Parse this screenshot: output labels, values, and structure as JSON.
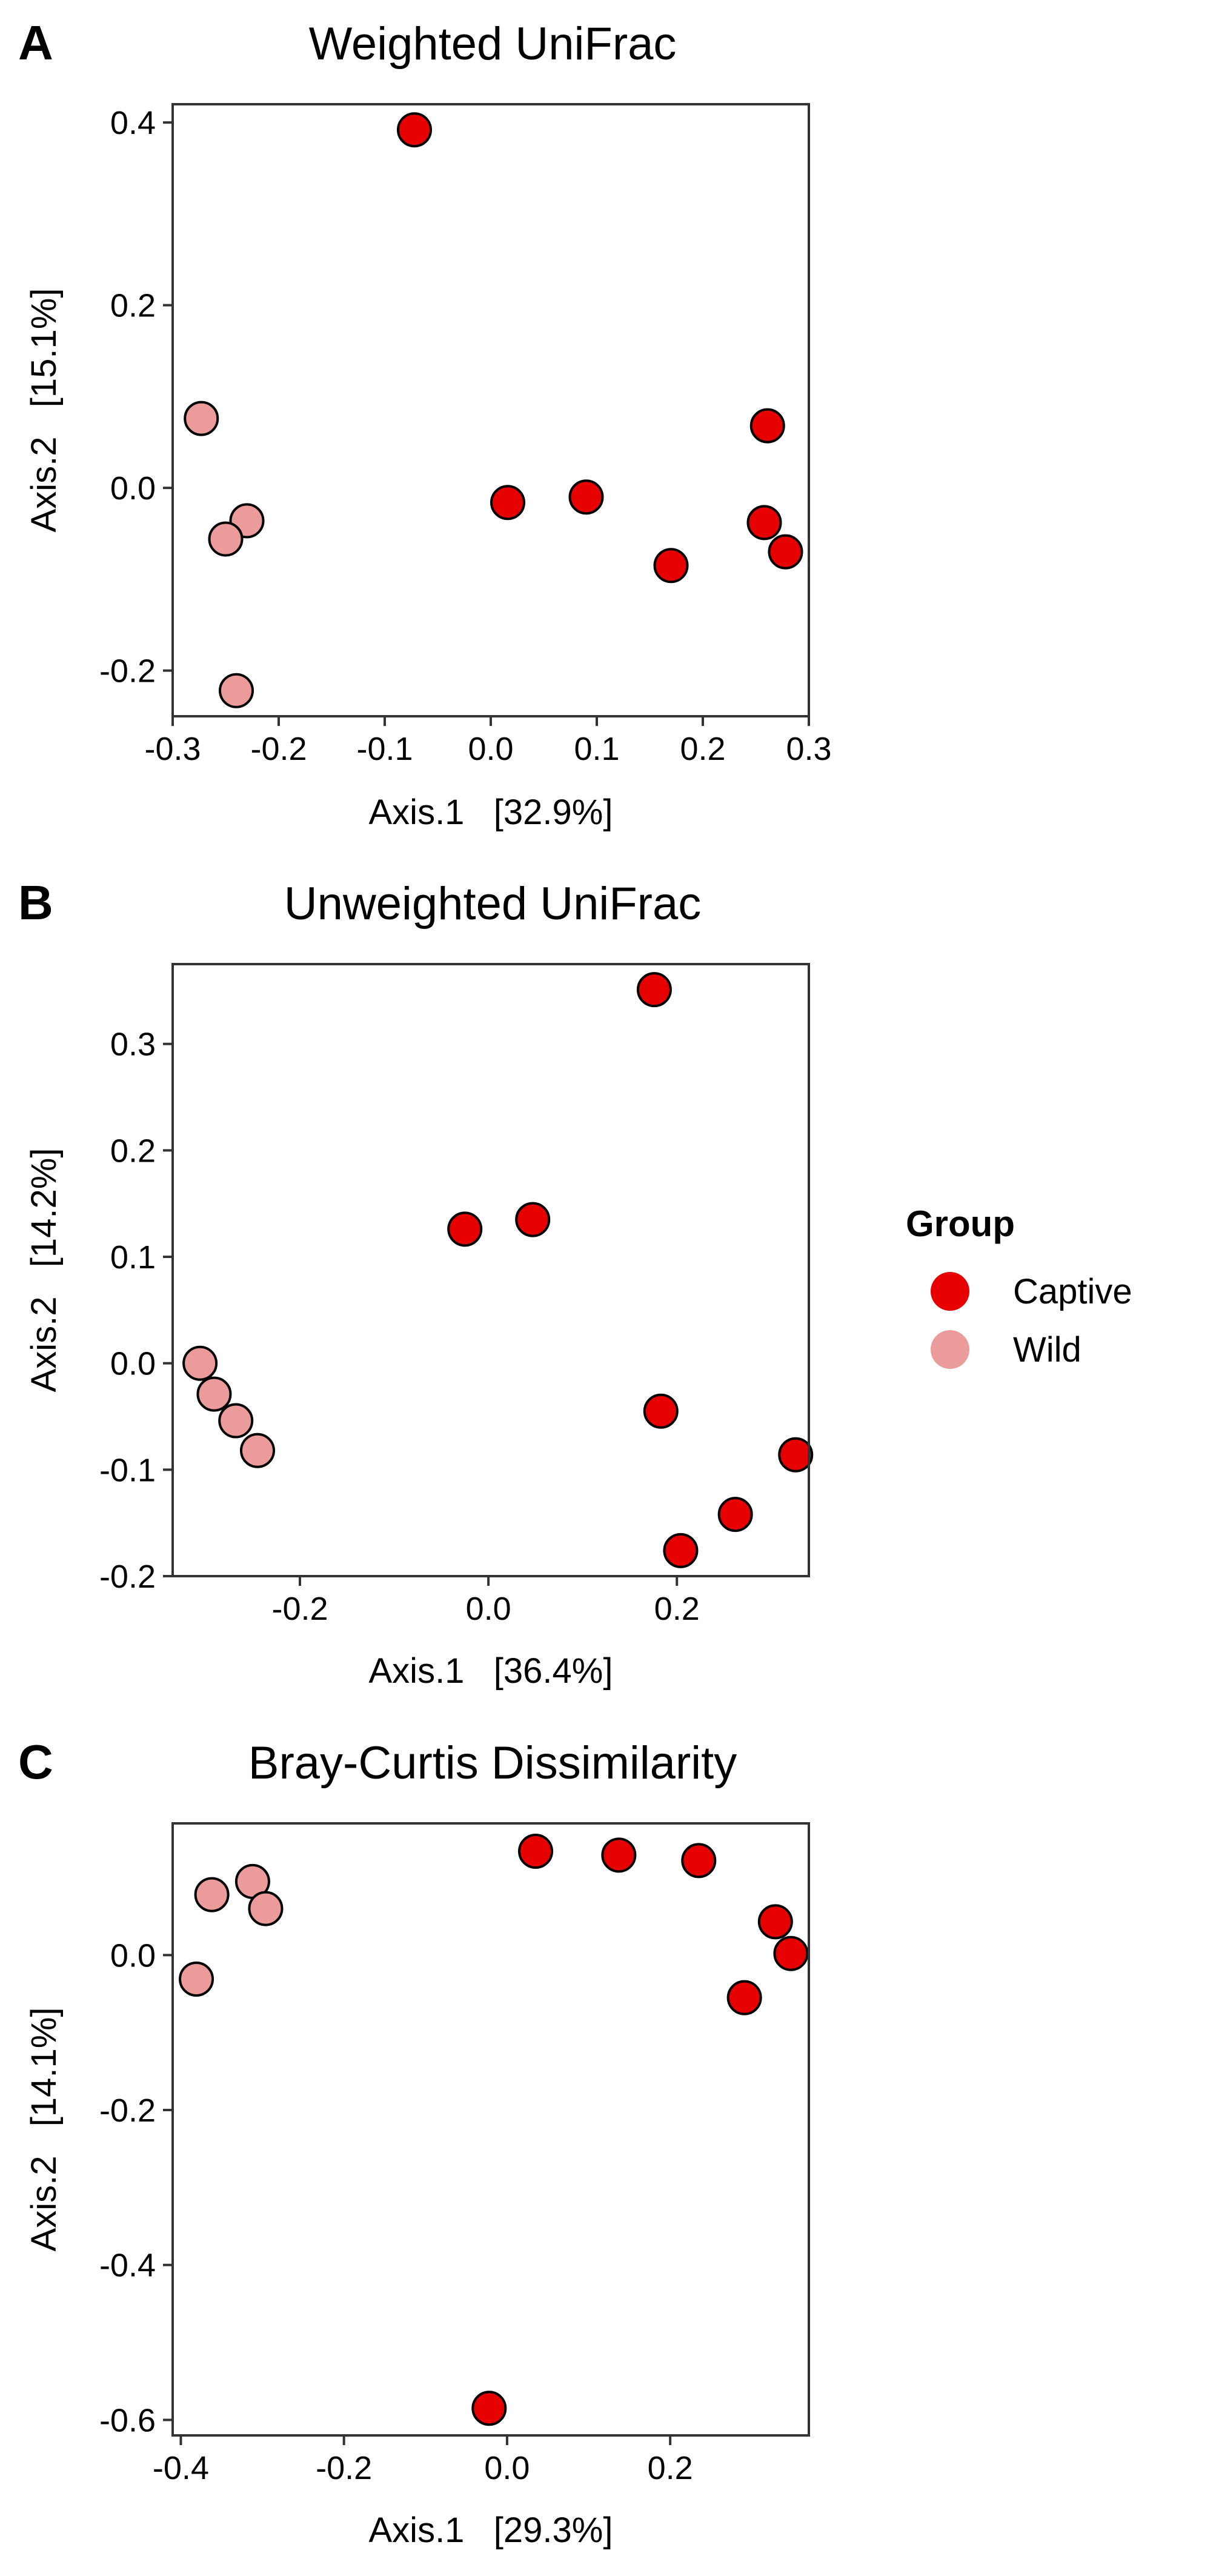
{
  "legend": {
    "title": "Group",
    "placement": "right",
    "entries": [
      {
        "label": "Captive",
        "color": "#E60000"
      },
      {
        "label": "Wild",
        "color": "#EC9B9B"
      }
    ]
  },
  "chart_data": [
    {
      "panel_letter": "A",
      "type": "scatter",
      "title": "Weighted UniFrac",
      "xlabel": "Axis.1   [32.9%]",
      "ylabel": "Axis.2   [15.1%]",
      "xlim": [
        -0.3,
        0.3
      ],
      "ylim": [
        -0.25,
        0.42
      ],
      "xticks": [
        -0.3,
        -0.2,
        -0.1,
        0.0,
        0.1,
        0.2,
        0.3
      ],
      "xtick_labels": [
        "-0.3",
        "-0.2",
        "-0.1",
        "0.0",
        "0.1",
        "0.2",
        "0.3"
      ],
      "yticks": [
        -0.2,
        0.0,
        0.2,
        0.4
      ],
      "ytick_labels": [
        "-0.2",
        "0.0",
        "0.2",
        "0.4"
      ],
      "grid": false,
      "series": [
        {
          "name": "Captive",
          "color": "#E60000",
          "points": [
            {
              "x": -0.072,
              "y": 0.392
            },
            {
              "x": 0.016,
              "y": -0.016
            },
            {
              "x": 0.09,
              "y": -0.01
            },
            {
              "x": 0.17,
              "y": -0.085
            },
            {
              "x": 0.261,
              "y": 0.068
            },
            {
              "x": 0.258,
              "y": -0.038
            },
            {
              "x": 0.278,
              "y": -0.07
            }
          ]
        },
        {
          "name": "Wild",
          "color": "#EC9B9B",
          "points": [
            {
              "x": -0.273,
              "y": 0.076
            },
            {
              "x": -0.23,
              "y": -0.036
            },
            {
              "x": -0.25,
              "y": -0.056
            },
            {
              "x": -0.24,
              "y": -0.222
            }
          ]
        }
      ]
    },
    {
      "panel_letter": "B",
      "type": "scatter",
      "title": "Unweighted UniFrac",
      "xlabel": "Axis.1   [36.4%]",
      "ylabel": "Axis.2   [14.2%]",
      "xlim": [
        -0.335,
        0.34
      ],
      "ylim": [
        -0.2,
        0.375
      ],
      "xticks": [
        -0.2,
        0.0,
        0.2
      ],
      "xtick_labels": [
        "-0.2",
        "0.0",
        "0.2"
      ],
      "yticks": [
        -0.2,
        -0.1,
        0.0,
        0.1,
        0.2,
        0.3
      ],
      "ytick_labels": [
        "-0.2",
        "-0.1",
        "0.0",
        "0.1",
        "0.2",
        "0.3"
      ],
      "grid": false,
      "series": [
        {
          "name": "Captive",
          "color": "#E60000",
          "points": [
            {
              "x": 0.176,
              "y": 0.351
            },
            {
              "x": -0.025,
              "y": 0.126
            },
            {
              "x": 0.047,
              "y": 0.135
            },
            {
              "x": 0.183,
              "y": -0.045
            },
            {
              "x": 0.326,
              "y": -0.086
            },
            {
              "x": 0.262,
              "y": -0.142
            },
            {
              "x": 0.204,
              "y": -0.176
            }
          ]
        },
        {
          "name": "Wild",
          "color": "#EC9B9B",
          "points": [
            {
              "x": -0.306,
              "y": 0.0
            },
            {
              "x": -0.291,
              "y": -0.029
            },
            {
              "x": -0.268,
              "y": -0.054
            },
            {
              "x": -0.245,
              "y": -0.082
            }
          ]
        }
      ]
    },
    {
      "panel_letter": "C",
      "type": "scatter",
      "title": "Bray-Curtis Dissimilarity",
      "xlabel": "Axis.1   [29.3%]",
      "ylabel": "Axis.2   [14.1%]",
      "xlim": [
        -0.41,
        0.37
      ],
      "ylim": [
        -0.62,
        0.17
      ],
      "xticks": [
        -0.4,
        -0.2,
        0.0,
        0.2
      ],
      "xtick_labels": [
        "-0.4",
        "-0.2",
        "0.0",
        "0.2"
      ],
      "yticks": [
        -0.6,
        -0.4,
        -0.2,
        0.0
      ],
      "ytick_labels": [
        "-0.6",
        "-0.4",
        "-0.2",
        "0.0"
      ],
      "grid": false,
      "series": [
        {
          "name": "Captive",
          "color": "#E60000",
          "points": [
            {
              "x": 0.035,
              "y": 0.134
            },
            {
              "x": 0.137,
              "y": 0.129
            },
            {
              "x": 0.235,
              "y": 0.122
            },
            {
              "x": 0.329,
              "y": 0.043
            },
            {
              "x": 0.348,
              "y": 0.002
            },
            {
              "x": 0.291,
              "y": -0.055
            },
            {
              "x": -0.022,
              "y": -0.585
            }
          ]
        },
        {
          "name": "Wild",
          "color": "#EC9B9B",
          "points": [
            {
              "x": -0.312,
              "y": 0.095
            },
            {
              "x": -0.362,
              "y": 0.078
            },
            {
              "x": -0.296,
              "y": 0.06
            },
            {
              "x": -0.381,
              "y": -0.031
            }
          ]
        }
      ]
    }
  ]
}
